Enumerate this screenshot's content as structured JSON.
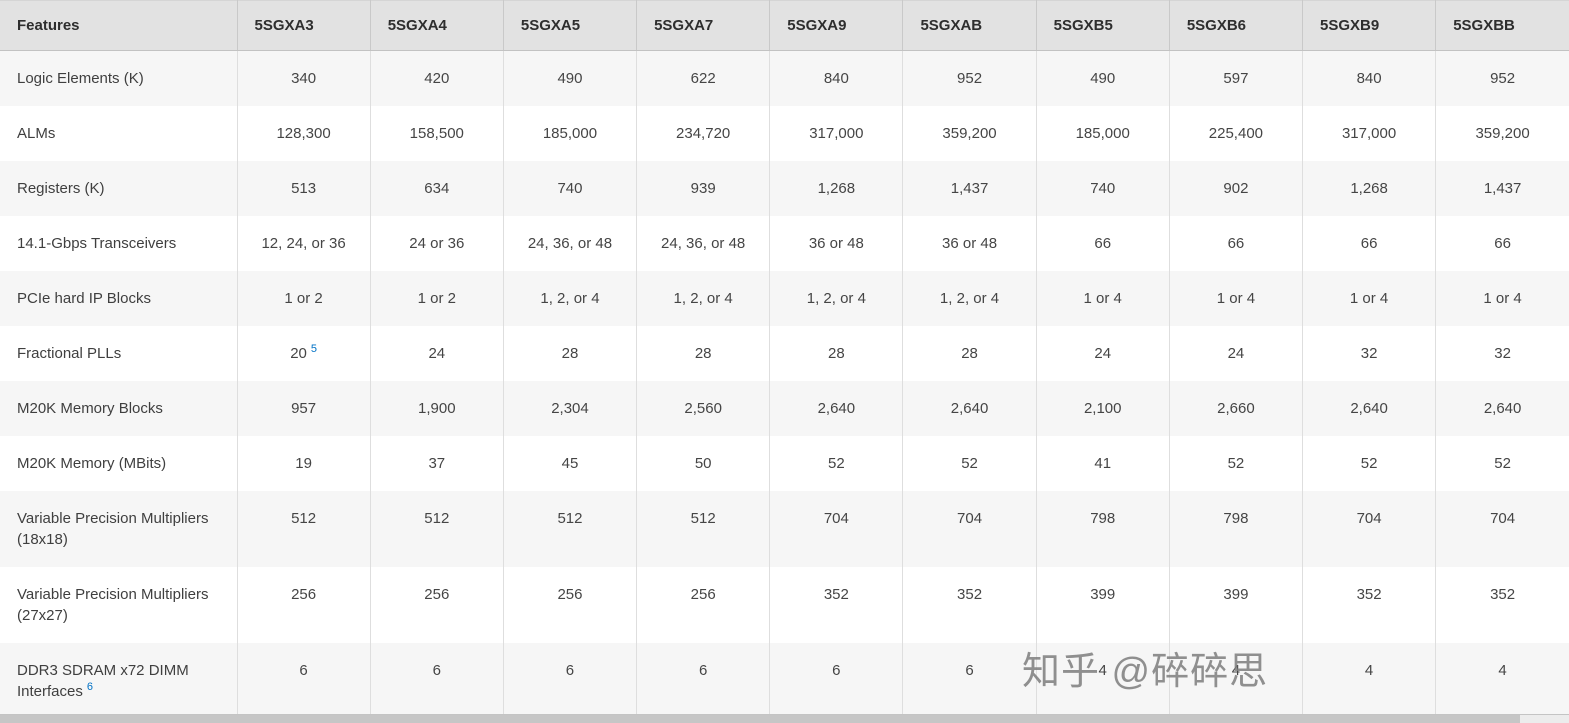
{
  "colors": {
    "header_background": "#e2e2e2",
    "shaded_row_background": "#f6f6f6",
    "footnote_link": "#0071c5"
  },
  "table": {
    "header": [
      "Features",
      "5SGXA3",
      "5SGXA4",
      "5SGXA5",
      "5SGXA7",
      "5SGXA9",
      "5SGXAB",
      "5SGXB5",
      "5SGXB6",
      "5SGXB9",
      "5SGXBB"
    ],
    "rows": [
      {
        "feature": "Logic Elements (K)",
        "values": [
          "340",
          "420",
          "490",
          "622",
          "840",
          "952",
          "490",
          "597",
          "840",
          "952"
        ]
      },
      {
        "feature": "ALMs",
        "values": [
          "128,300",
          "158,500",
          "185,000",
          "234,720",
          "317,000",
          "359,200",
          "185,000",
          "225,400",
          "317,000",
          "359,200"
        ]
      },
      {
        "feature": "Registers (K)",
        "values": [
          "513",
          "634",
          "740",
          "939",
          "1,268",
          "1,437",
          "740",
          "902",
          "1,268",
          "1,437"
        ]
      },
      {
        "feature": "14.1-Gbps Transceivers",
        "values": [
          "12, 24, or 36",
          "24 or 36",
          "24, 36, or 48",
          "24, 36, or 48",
          "36 or 48",
          "36 or 48",
          "66",
          "66",
          "66",
          "66"
        ]
      },
      {
        "feature": "PCIe hard IP Blocks",
        "values": [
          "1 or 2",
          "1 or 2",
          "1, 2, or 4",
          "1, 2, or 4",
          "1, 2, or 4",
          "1, 2, or 4",
          "1 or 4",
          "1 or 4",
          "1 or 4",
          "1 or 4"
        ]
      },
      {
        "feature": "Fractional PLLs",
        "values": [
          "20",
          "24",
          "28",
          "28",
          "28",
          "28",
          "24",
          "24",
          "32",
          "32"
        ],
        "value_sups": [
          "5",
          "",
          "",
          "",
          "",
          "",
          "",
          "",
          "",
          ""
        ]
      },
      {
        "feature": "M20K Memory Blocks",
        "values": [
          "957",
          "1,900",
          "2,304",
          "2,560",
          "2,640",
          "2,640",
          "2,100",
          "2,660",
          "2,640",
          "2,640"
        ]
      },
      {
        "feature": "M20K Memory (MBits)",
        "values": [
          "19",
          "37",
          "45",
          "50",
          "52",
          "52",
          "41",
          "52",
          "52",
          "52"
        ]
      },
      {
        "feature": "Variable Precision Multipliers (18x18)",
        "values": [
          "512",
          "512",
          "512",
          "512",
          "704",
          "704",
          "798",
          "798",
          "704",
          "704"
        ]
      },
      {
        "feature": "Variable Precision Multipliers (27x27)",
        "values": [
          "256",
          "256",
          "256",
          "256",
          "352",
          "352",
          "399",
          "399",
          "352",
          "352"
        ]
      },
      {
        "feature": "DDR3 SDRAM x72 DIMM Interfaces",
        "feature_sup": "6",
        "values": [
          "6",
          "6",
          "6",
          "6",
          "6",
          "6",
          "4",
          "4",
          "4",
          "4"
        ]
      }
    ]
  },
  "watermark": {
    "text": "知乎 @碎碎思"
  }
}
